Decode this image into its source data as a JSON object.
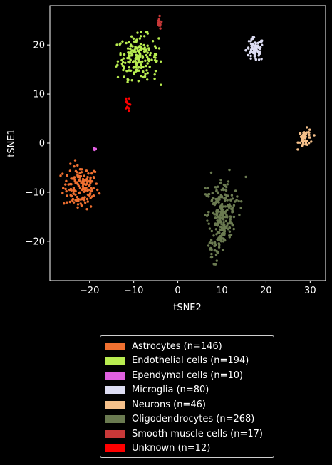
{
  "chart_data": {
    "type": "scatter",
    "xlabel": "tSNE2",
    "ylabel": "tSNE1",
    "xlim": [
      -29,
      33.5
    ],
    "ylim": [
      -28,
      28
    ],
    "xticks": [
      -20,
      -10,
      0,
      10,
      20,
      30
    ],
    "yticks": [
      -20,
      -10,
      0,
      10,
      20
    ],
    "xtick_labels": [
      "−20",
      "−10",
      "0",
      "10",
      "20",
      "30"
    ],
    "ytick_labels": [
      "−20",
      "−10",
      "0",
      "10",
      "20"
    ],
    "grid": false,
    "legend_position": "below",
    "series": [
      {
        "name": "Astrocytes (n=146)",
        "color": "#f07030",
        "n": 146,
        "center": [
          -22,
          -9
        ],
        "spread": [
          2.0,
          2.2
        ]
      },
      {
        "name": "Endothelial cells (n=194)",
        "color": "#b8ec50",
        "n": 194,
        "center": [
          -9,
          17.5
        ],
        "spread": [
          2.3,
          2.2
        ]
      },
      {
        "name": "Ependymal cells (n=10)",
        "color": "#e060e0",
        "n": 10,
        "center": [
          -18.8,
          -1.2
        ],
        "spread": [
          0.15,
          0.15
        ]
      },
      {
        "name": "Microglia (n=80)",
        "color": "#dcdcf2",
        "n": 80,
        "center": [
          17.5,
          19
        ],
        "spread": [
          1.0,
          1.2
        ]
      },
      {
        "name": "Neurons (n=46)",
        "color": "#f5c08a",
        "n": 46,
        "center": [
          29,
          1
        ],
        "spread": [
          0.8,
          0.9
        ]
      },
      {
        "name": "Oligodendrocytes (n=268)",
        "color": "#6a7a50",
        "n": 268,
        "center": [
          10,
          -15
        ],
        "spread": [
          1.6,
          4.0
        ]
      },
      {
        "name": "Smooth muscle cells (n=17)",
        "color": "#c83838",
        "n": 17,
        "center": [
          -4.3,
          24.5
        ],
        "spread": [
          0.3,
          0.6
        ]
      },
      {
        "name": "Unknown (n=12)",
        "color": "#ff0000",
        "n": 12,
        "center": [
          -11.5,
          7.5
        ],
        "spread": [
          0.3,
          0.9
        ]
      }
    ]
  }
}
